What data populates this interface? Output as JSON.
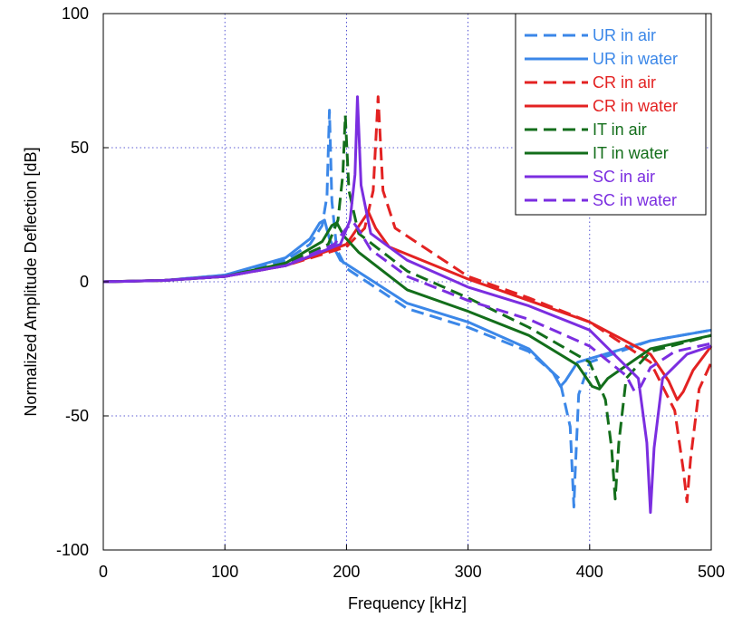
{
  "chart_data": {
    "type": "line",
    "title": "",
    "xlabel": "Frequency [kHz]",
    "ylabel": "Normalized Amplitude Deflection [dB]",
    "xlim": [
      0,
      500
    ],
    "ylim": [
      -100,
      100
    ],
    "x_ticks": [
      0,
      100,
      200,
      300,
      400,
      500
    ],
    "x_tick_labels": [
      "0",
      "100",
      "200",
      "300",
      "400",
      "500"
    ],
    "y_ticks": [
      -100,
      -50,
      0,
      50,
      100
    ],
    "y_tick_labels": [
      "-100",
      "-50",
      "0",
      "50",
      "100"
    ],
    "grid": true,
    "legend_position": "top-right",
    "series": [
      {
        "name": "UR in air",
        "color": "#3b87e8",
        "dash": "dashed",
        "x": [
          0,
          50,
          100,
          150,
          170,
          180,
          184,
          186,
          188,
          192,
          200,
          250,
          300,
          350,
          375,
          384,
          387,
          388,
          391,
          400,
          450,
          500
        ],
        "y": [
          0,
          0.5,
          2.5,
          8,
          14,
          21,
          32,
          64,
          30,
          12,
          5,
          -10,
          -17,
          -26,
          -36,
          -54,
          -84,
          -72,
          -42,
          -30,
          -22,
          -18
        ]
      },
      {
        "name": "UR in water",
        "color": "#3b87e8",
        "dash": "solid",
        "x": [
          0,
          50,
          100,
          150,
          170,
          178,
          182,
          186,
          195,
          250,
          300,
          350,
          370,
          376,
          380,
          390,
          450,
          500
        ],
        "y": [
          0,
          0.5,
          2.5,
          9,
          16,
          22,
          23,
          16,
          8,
          -8,
          -15,
          -25,
          -34,
          -39,
          -37,
          -30,
          -22,
          -18
        ]
      },
      {
        "name": "CR in air",
        "color": "#e32222",
        "dash": "dashed",
        "x": [
          0,
          50,
          100,
          150,
          200,
          215,
          222,
          226,
          230,
          240,
          300,
          350,
          400,
          450,
          470,
          477,
          480,
          483,
          490,
          500
        ],
        "y": [
          0,
          0.5,
          2,
          6,
          13,
          20,
          34,
          69,
          34,
          20,
          2,
          -6,
          -15,
          -30,
          -48,
          -70,
          -82,
          -66,
          -40,
          -30
        ]
      },
      {
        "name": "CR in water",
        "color": "#e32222",
        "dash": "solid",
        "x": [
          0,
          50,
          100,
          150,
          200,
          212,
          218,
          224,
          235,
          300,
          350,
          400,
          450,
          465,
          472,
          477,
          485,
          500
        ],
        "y": [
          0,
          0.5,
          2,
          6,
          14,
          22,
          26,
          20,
          13,
          1,
          -7,
          -15,
          -27,
          -37,
          -44,
          -41,
          -33,
          -24
        ]
      },
      {
        "name": "IT in air",
        "color": "#136e1b",
        "dash": "dashed",
        "x": [
          0,
          50,
          100,
          150,
          185,
          193,
          197,
          199,
          202,
          210,
          250,
          300,
          350,
          400,
          413,
          418,
          421,
          424,
          430,
          450,
          500
        ],
        "y": [
          0,
          0.5,
          2,
          7,
          14,
          23,
          40,
          62,
          34,
          18,
          4,
          -6,
          -17,
          -30,
          -44,
          -62,
          -81,
          -60,
          -36,
          -26,
          -20
        ]
      },
      {
        "name": "IT in water",
        "color": "#136e1b",
        "dash": "solid",
        "x": [
          0,
          50,
          100,
          150,
          180,
          188,
          192,
          198,
          210,
          250,
          300,
          350,
          390,
          402,
          408,
          415,
          450,
          500
        ],
        "y": [
          0,
          0.5,
          2,
          7,
          15,
          21,
          22,
          17,
          11,
          -3,
          -11,
          -20,
          -31,
          -39,
          -40,
          -36,
          -25,
          -20
        ]
      },
      {
        "name": "SC in air",
        "color": "#7b2ee0",
        "dash": "solid",
        "x": [
          0,
          50,
          100,
          150,
          195,
          203,
          207,
          209,
          212,
          220,
          250,
          300,
          350,
          400,
          440,
          447,
          450,
          453,
          460,
          480,
          500
        ],
        "y": [
          0,
          0.5,
          2,
          6,
          14,
          23,
          40,
          69,
          36,
          18,
          8,
          -2,
          -9,
          -18,
          -36,
          -60,
          -86,
          -62,
          -36,
          -27,
          -24
        ]
      },
      {
        "name": "SC in water",
        "color": "#7b2ee0",
        "dash": "dashed",
        "x": [
          0,
          50,
          100,
          150,
          190,
          200,
          206,
          212,
          220,
          250,
          300,
          350,
          400,
          430,
          437,
          442,
          450,
          470,
          500
        ],
        "y": [
          0,
          0.5,
          2,
          6,
          14,
          20,
          22,
          18,
          12,
          2,
          -7,
          -14,
          -24,
          -35,
          -41,
          -39,
          -32,
          -26,
          -23
        ]
      }
    ]
  }
}
